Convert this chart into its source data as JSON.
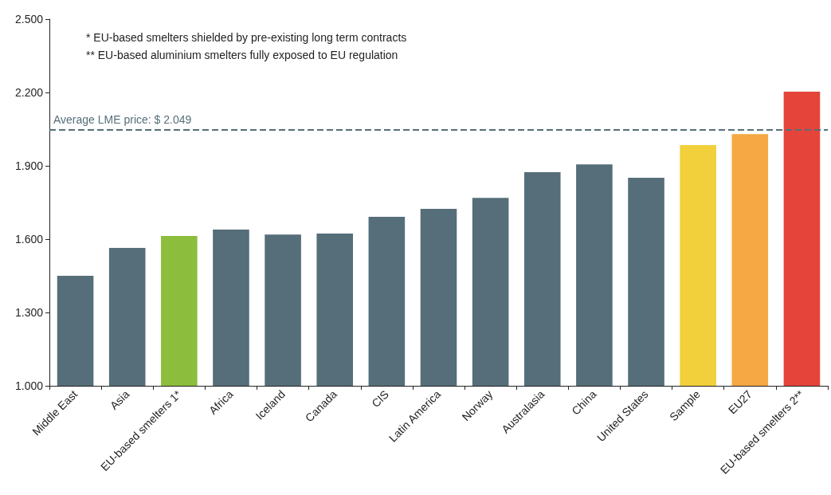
{
  "chart_data": {
    "type": "bar",
    "categories": [
      "Middle East",
      "Asia",
      "EU-based smelters 1*",
      "Africa",
      "Iceland",
      "Canada",
      "CIS",
      "Latin America",
      "Norway",
      "Australasia",
      "China",
      "United States",
      "Sample",
      "EU27",
      "EU-based smelters 2**"
    ],
    "values": [
      1450,
      1564,
      1613,
      1639,
      1619,
      1623,
      1691,
      1724,
      1769,
      1874,
      1906,
      1851,
      1985,
      2030,
      2203
    ],
    "colors": [
      "#566e7a",
      "#566e7a",
      "#8dbd3c",
      "#566e7a",
      "#566e7a",
      "#566e7a",
      "#566e7a",
      "#566e7a",
      "#566e7a",
      "#566e7a",
      "#566e7a",
      "#566e7a",
      "#f2d03b",
      "#f5a843",
      "#e5443a"
    ],
    "ylim": [
      1000,
      2500
    ],
    "yticks": [
      {
        "value": 1000,
        "label": "1.000"
      },
      {
        "value": 1300,
        "label": "1.300"
      },
      {
        "value": 1600,
        "label": "1.600"
      },
      {
        "value": 1900,
        "label": "1.900"
      },
      {
        "value": 2200,
        "label": "2.200"
      },
      {
        "value": 2500,
        "label": "2.500"
      }
    ],
    "grid": false,
    "ref_lines": [
      {
        "axis": "y",
        "value": 2049,
        "label": "Average LME price: $ 2.049",
        "color": "#566e7a",
        "line_style": "dashed"
      }
    ],
    "annotations": [
      "* EU-based smelters shielded by pre-existing long term contracts",
      "** EU-based aluminium smelters fully exposed to EU regulation"
    ]
  }
}
